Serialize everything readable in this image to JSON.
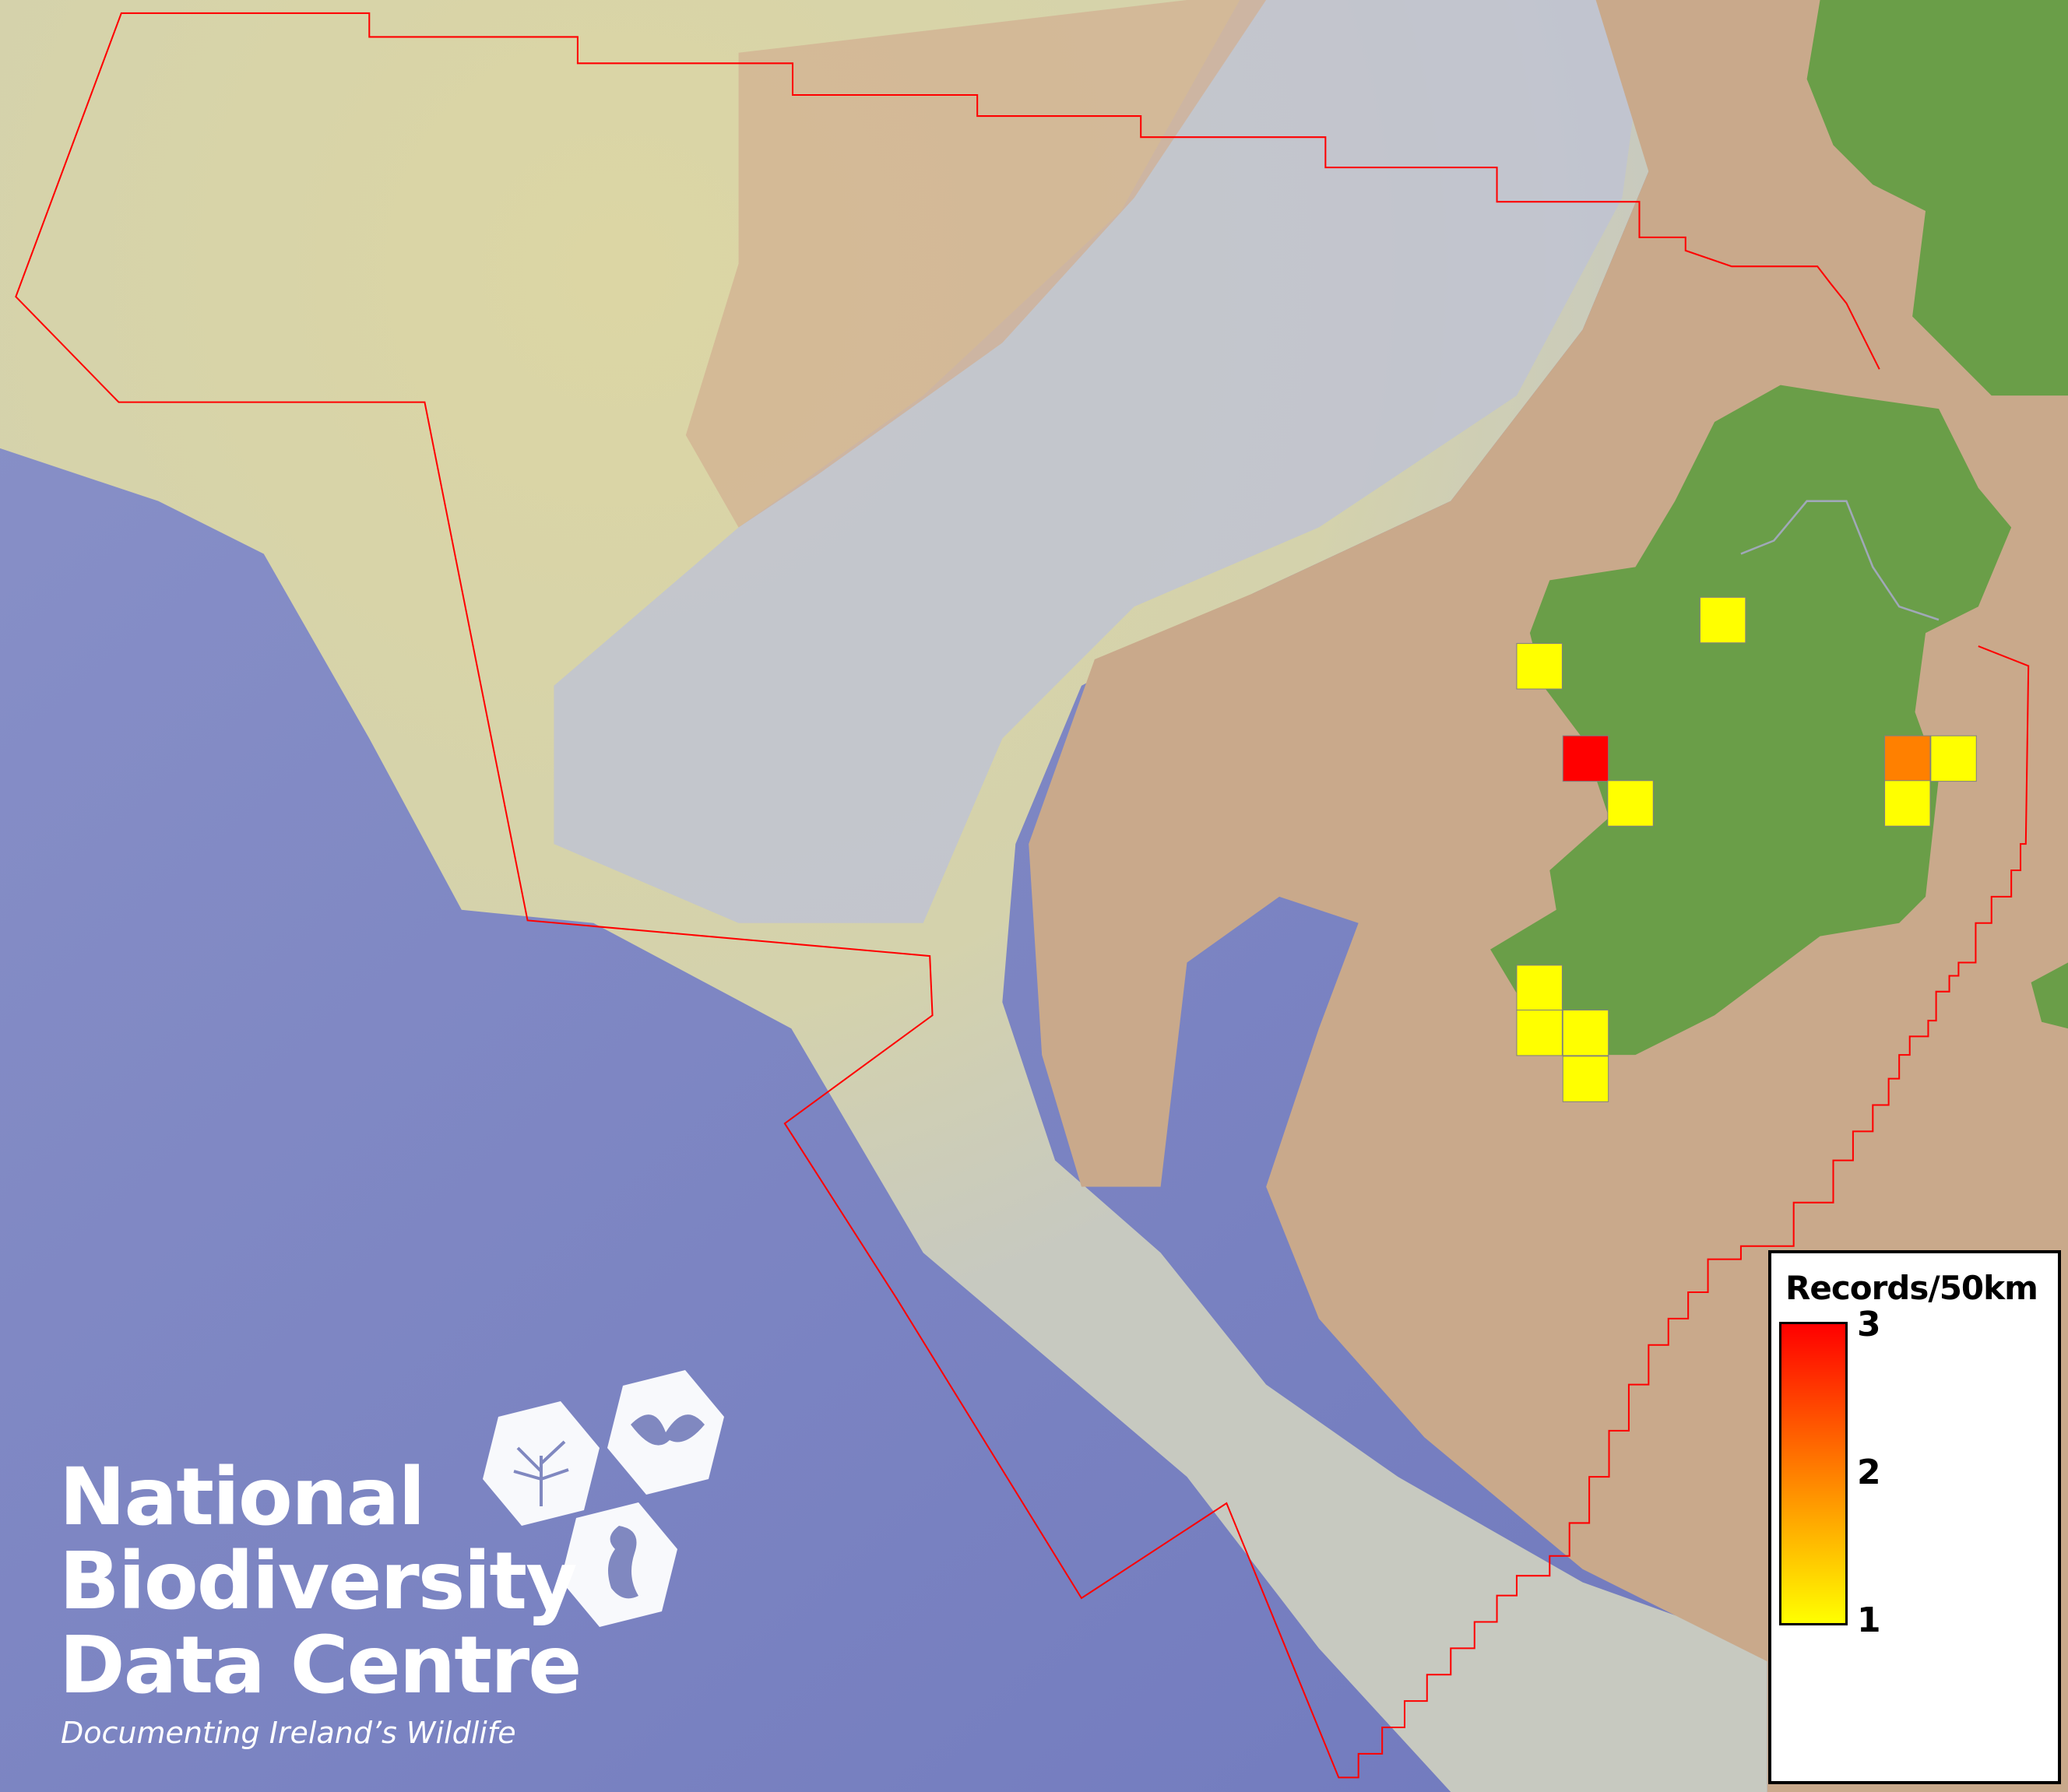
{
  "map": {
    "colors": {
      "ocean_deep": "#7c84c2",
      "shelf": "#d9d8a6",
      "channel": "#b9bdd0",
      "shallow": "#c9a98b",
      "land": "#6a9e48",
      "boundary": "#ff0000",
      "cell_border": "#808080"
    },
    "cells": [
      {
        "value": 1
      },
      {
        "value": 1
      },
      {
        "value": 3
      },
      {
        "value": 1
      },
      {
        "value": 2
      },
      {
        "value": 1
      },
      {
        "value": 1
      },
      {
        "value": 1
      },
      {
        "value": 1
      },
      {
        "value": 1
      },
      {
        "value": 1
      }
    ]
  },
  "legend": {
    "title": "Records/50km",
    "min": 1,
    "mid": 2,
    "max": 3,
    "color_min": "#ffff00",
    "color_mid": "#ff8000",
    "color_max": "#ff0000"
  },
  "logo": {
    "line1": "National",
    "line2": "Biodiversity",
    "line3": "Data Centre",
    "tagline": "Documenting Ireland’s Wildlife",
    "icons": [
      "tree-icon",
      "butterfly-icon",
      "seahorse-icon"
    ]
  }
}
